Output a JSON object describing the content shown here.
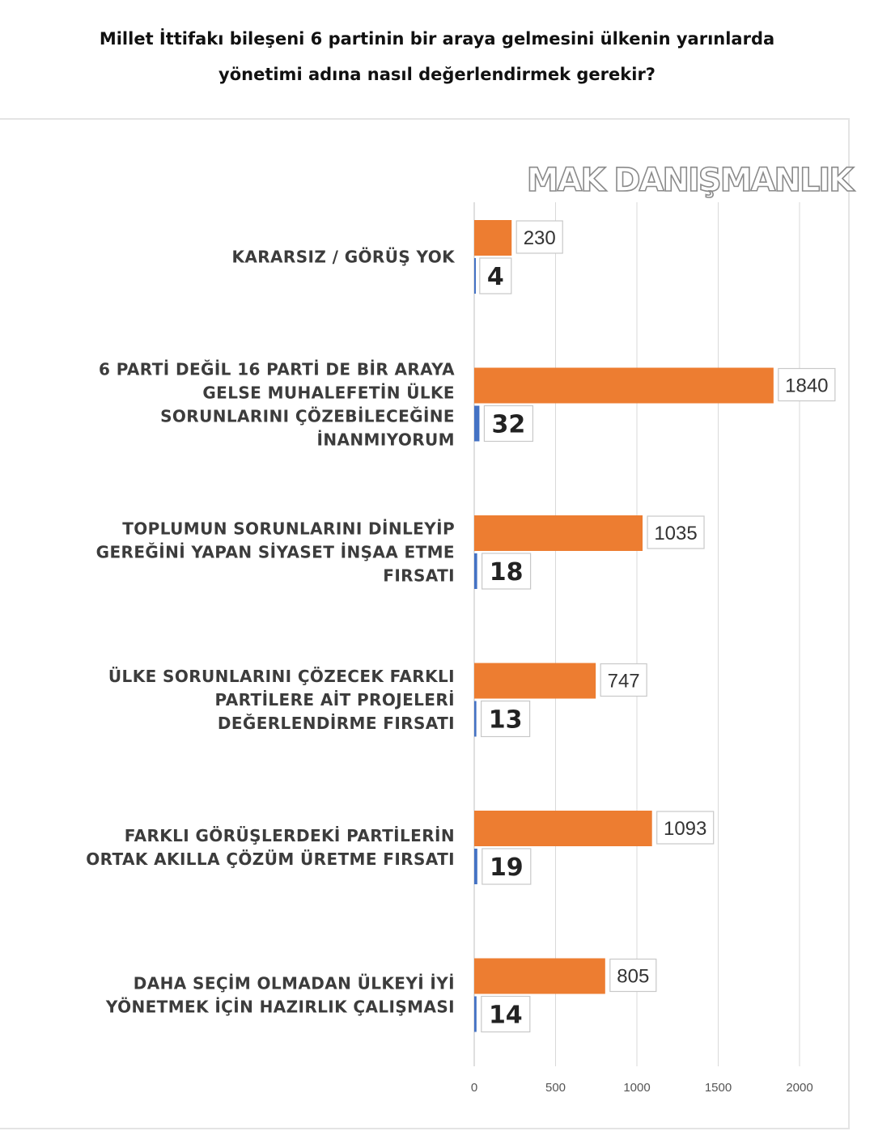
{
  "title_lines": [
    "Millet İttifakı bileşeni 6 partinin bir araya gelmesini ülkenin yarınlarda",
    "yönetimi adına nasıl değerlendirmek gerekir?"
  ],
  "watermark": "MAK DANIŞMANLIK",
  "colors": {
    "series_a": "#ed7d31",
    "series_b": "#4472c4",
    "grid": "#d9d9d9"
  },
  "chart_data": {
    "type": "bar",
    "orientation": "horizontal",
    "categories": [
      [
        "KARARSIZ / GÖRÜŞ YOK"
      ],
      [
        "6 PARTİ DEĞİL 16 PARTİ DE BİR ARAYA",
        "GELSE MUHALEFETİN ÜLKE",
        "SORUNLARINI ÇÖZEBİLECEĞİNE",
        "İNANMIYORUM"
      ],
      [
        "TOPLUMUN SORUNLARINI DİNLEYİP",
        "GEREĞİNİ YAPAN SİYASET İNŞAA ETME",
        "FIRSATI"
      ],
      [
        "ÜLKE SORUNLARINI ÇÖZECEK FARKLI",
        "PARTİLERE AİT PROJELERİ",
        "DEĞERLENDİRME FIRSATI"
      ],
      [
        "FARKLI GÖRÜŞLERDEKİ PARTİLERİN",
        "ORTAK AKILLA ÇÖZÜM ÜRETME FIRSATI"
      ],
      [
        "DAHA SEÇİM OLMADAN ÜLKEYİ İYİ",
        "YÖNETMEK İÇİN HAZIRLIK ÇALIŞMASI"
      ]
    ],
    "series": [
      {
        "values": [
          230,
          1840,
          1035,
          747,
          1093,
          805
        ],
        "labels": [
          "230",
          "1840",
          "1035",
          "747",
          "1093",
          "805"
        ],
        "color": "#ed7d31"
      },
      {
        "values": [
          4,
          32,
          18,
          13,
          19,
          14
        ],
        "labels": [
          "4",
          "32",
          "18",
          "13",
          "19",
          "14"
        ],
        "color": "#4472c4"
      }
    ],
    "xlim": [
      0,
      2000
    ],
    "xticks": [
      "0",
      "500",
      "1000",
      "1500",
      "2000"
    ],
    "grid": true,
    "legend": "none"
  }
}
